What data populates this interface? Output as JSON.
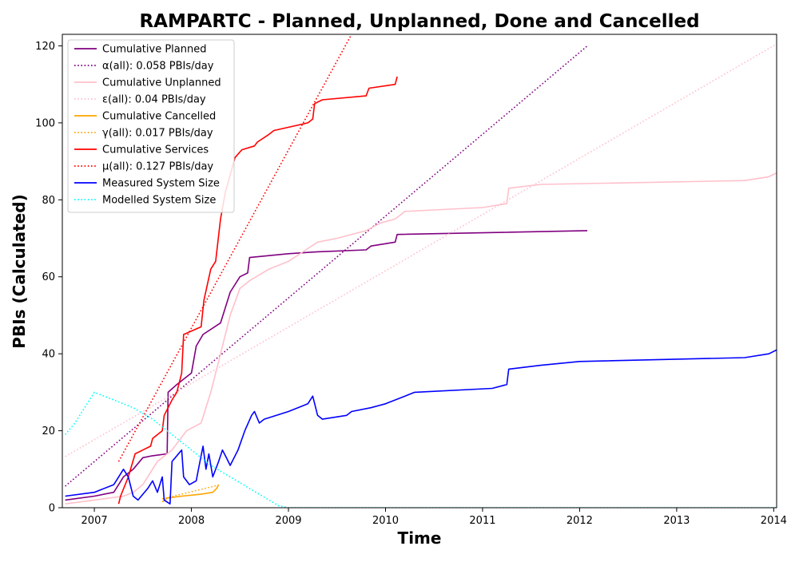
{
  "chart_data": {
    "type": "line",
    "title": "RAMPARTC - Planned, Unplanned, Done  and Cancelled",
    "xlabel": "Time",
    "ylabel": "PBIs (Calculated)",
    "xlim": [
      2006.67,
      2014.03
    ],
    "ylim": [
      0,
      123
    ],
    "x_ticks": [
      2007,
      2008,
      2009,
      2010,
      2011,
      2012,
      2013,
      2014
    ],
    "y_ticks": [
      0,
      20,
      40,
      60,
      80,
      100,
      120
    ],
    "legend_position": "top-left",
    "series": [
      {
        "name": "Cumulative Planned",
        "color": "#800080",
        "style": "solid",
        "points": [
          [
            2006.7,
            2
          ],
          [
            2007.0,
            3
          ],
          [
            2007.2,
            4
          ],
          [
            2007.3,
            8
          ],
          [
            2007.4,
            10
          ],
          [
            2007.5,
            13
          ],
          [
            2007.6,
            13.5
          ],
          [
            2007.75,
            14
          ],
          [
            2007.76,
            30
          ],
          [
            2007.85,
            32
          ],
          [
            2007.9,
            33
          ],
          [
            2008.0,
            35
          ],
          [
            2008.05,
            42
          ],
          [
            2008.12,
            45
          ],
          [
            2008.3,
            48
          ],
          [
            2008.4,
            56
          ],
          [
            2008.5,
            60
          ],
          [
            2008.58,
            61
          ],
          [
            2008.6,
            65
          ],
          [
            2008.8,
            65.5
          ],
          [
            2009.0,
            66
          ],
          [
            2009.3,
            66.5
          ],
          [
            2009.8,
            67
          ],
          [
            2009.85,
            68
          ],
          [
            2010.1,
            69
          ],
          [
            2010.12,
            71
          ],
          [
            2012.08,
            72
          ]
        ]
      },
      {
        "name": "α(all): 0.058 PBIs/day",
        "color": "#800080",
        "style": "dotted",
        "points": [
          [
            2006.7,
            5.6
          ],
          [
            2012.08,
            120
          ]
        ]
      },
      {
        "name": "Cumulative Unplanned",
        "color": "#ffc0cb",
        "style": "solid",
        "points": [
          [
            2006.7,
            1
          ],
          [
            2007.0,
            2
          ],
          [
            2007.3,
            3
          ],
          [
            2007.4,
            4
          ],
          [
            2007.5,
            6
          ],
          [
            2007.65,
            12
          ],
          [
            2007.8,
            15
          ],
          [
            2007.95,
            20
          ],
          [
            2008.1,
            22
          ],
          [
            2008.2,
            30
          ],
          [
            2008.3,
            40
          ],
          [
            2008.4,
            50
          ],
          [
            2008.5,
            57
          ],
          [
            2008.6,
            59
          ],
          [
            2008.8,
            62
          ],
          [
            2009.0,
            64
          ],
          [
            2009.3,
            69
          ],
          [
            2009.5,
            70
          ],
          [
            2009.8,
            72
          ],
          [
            2009.95,
            74
          ],
          [
            2010.1,
            75
          ],
          [
            2010.2,
            77
          ],
          [
            2011.0,
            78
          ],
          [
            2011.25,
            79
          ],
          [
            2011.27,
            83
          ],
          [
            2011.6,
            84
          ],
          [
            2013.7,
            85
          ],
          [
            2013.95,
            86
          ],
          [
            2014.03,
            87
          ]
        ]
      },
      {
        "name": "ε(all): 0.04 PBIs/day",
        "color": "#ffc0cb",
        "style": "dotted",
        "points": [
          [
            2006.7,
            13.3
          ],
          [
            2014.03,
            120.5
          ]
        ]
      },
      {
        "name": "Cumulative Cancelled",
        "color": "#ffa500",
        "style": "solid",
        "points": [
          [
            2007.7,
            1.5
          ],
          [
            2007.75,
            2.5
          ],
          [
            2007.9,
            3
          ],
          [
            2008.1,
            3.5
          ],
          [
            2008.22,
            4
          ],
          [
            2008.26,
            5
          ],
          [
            2008.28,
            6
          ]
        ]
      },
      {
        "name": "γ(all): 0.017 PBIs/day",
        "color": "#ffa500",
        "style": "dotted",
        "points": [
          [
            2007.7,
            2.3
          ],
          [
            2008.28,
            5.9
          ]
        ]
      },
      {
        "name": "Cumulative Services",
        "color": "#ff0000",
        "style": "solid",
        "points": [
          [
            2007.25,
            1
          ],
          [
            2007.27,
            3
          ],
          [
            2007.35,
            8
          ],
          [
            2007.42,
            14
          ],
          [
            2007.5,
            15
          ],
          [
            2007.58,
            16
          ],
          [
            2007.6,
            18
          ],
          [
            2007.7,
            20
          ],
          [
            2007.72,
            24
          ],
          [
            2007.8,
            28
          ],
          [
            2007.85,
            30
          ],
          [
            2007.9,
            35
          ],
          [
            2007.92,
            45
          ],
          [
            2008.1,
            47
          ],
          [
            2008.13,
            54
          ],
          [
            2008.2,
            62
          ],
          [
            2008.25,
            64
          ],
          [
            2008.3,
            75
          ],
          [
            2008.35,
            82
          ],
          [
            2008.45,
            91
          ],
          [
            2008.52,
            93
          ],
          [
            2008.65,
            94
          ],
          [
            2008.68,
            95
          ],
          [
            2008.8,
            97
          ],
          [
            2008.85,
            98
          ],
          [
            2009.2,
            100
          ],
          [
            2009.25,
            101
          ],
          [
            2009.27,
            105
          ],
          [
            2009.35,
            106
          ],
          [
            2009.8,
            107
          ],
          [
            2009.83,
            109
          ],
          [
            2010.1,
            110
          ],
          [
            2010.12,
            112
          ]
        ]
      },
      {
        "name": "μ(all): 0.127 PBIs/day",
        "color": "#ff0000",
        "style": "dotted",
        "points": [
          [
            2007.25,
            12
          ],
          [
            2009.65,
            123
          ]
        ]
      },
      {
        "name": "Measured System Size",
        "color": "#0000ff",
        "style": "solid",
        "points": [
          [
            2006.7,
            3
          ],
          [
            2007.0,
            4
          ],
          [
            2007.2,
            6
          ],
          [
            2007.25,
            8
          ],
          [
            2007.3,
            10
          ],
          [
            2007.35,
            8
          ],
          [
            2007.4,
            3
          ],
          [
            2007.45,
            2
          ],
          [
            2007.55,
            5
          ],
          [
            2007.6,
            7
          ],
          [
            2007.65,
            4
          ],
          [
            2007.7,
            8
          ],
          [
            2007.72,
            2
          ],
          [
            2007.78,
            1
          ],
          [
            2007.8,
            12
          ],
          [
            2007.9,
            15
          ],
          [
            2007.92,
            8
          ],
          [
            2007.98,
            6
          ],
          [
            2008.05,
            7
          ],
          [
            2008.08,
            11
          ],
          [
            2008.12,
            16
          ],
          [
            2008.15,
            10
          ],
          [
            2008.18,
            14
          ],
          [
            2008.22,
            8
          ],
          [
            2008.28,
            12
          ],
          [
            2008.32,
            15
          ],
          [
            2008.36,
            13
          ],
          [
            2008.4,
            11
          ],
          [
            2008.48,
            15
          ],
          [
            2008.55,
            20
          ],
          [
            2008.62,
            24
          ],
          [
            2008.65,
            25
          ],
          [
            2008.7,
            22
          ],
          [
            2008.75,
            23
          ],
          [
            2009.0,
            25
          ],
          [
            2009.2,
            27
          ],
          [
            2009.25,
            29
          ],
          [
            2009.3,
            24
          ],
          [
            2009.35,
            23
          ],
          [
            2009.6,
            24
          ],
          [
            2009.65,
            25
          ],
          [
            2009.85,
            26
          ],
          [
            2010.0,
            27
          ],
          [
            2010.2,
            29
          ],
          [
            2010.3,
            30
          ],
          [
            2011.1,
            31
          ],
          [
            2011.25,
            32
          ],
          [
            2011.27,
            36
          ],
          [
            2011.6,
            37
          ],
          [
            2012.0,
            38
          ],
          [
            2013.7,
            39
          ],
          [
            2013.95,
            40
          ],
          [
            2014.03,
            41
          ]
        ]
      },
      {
        "name": "Modelled System Size",
        "color": "#00ffff",
        "style": "dotted",
        "points": [
          [
            2006.7,
            19
          ],
          [
            2006.8,
            22
          ],
          [
            2006.9,
            26
          ],
          [
            2007.0,
            30
          ],
          [
            2007.2,
            28
          ],
          [
            2007.4,
            26
          ],
          [
            2007.6,
            23
          ],
          [
            2007.8,
            19
          ],
          [
            2008.0,
            15
          ],
          [
            2008.2,
            11
          ],
          [
            2008.4,
            8
          ],
          [
            2008.6,
            5
          ],
          [
            2008.8,
            2
          ],
          [
            2008.9,
            0.5
          ],
          [
            2009.0,
            0
          ],
          [
            2014.03,
            0
          ]
        ]
      }
    ]
  }
}
